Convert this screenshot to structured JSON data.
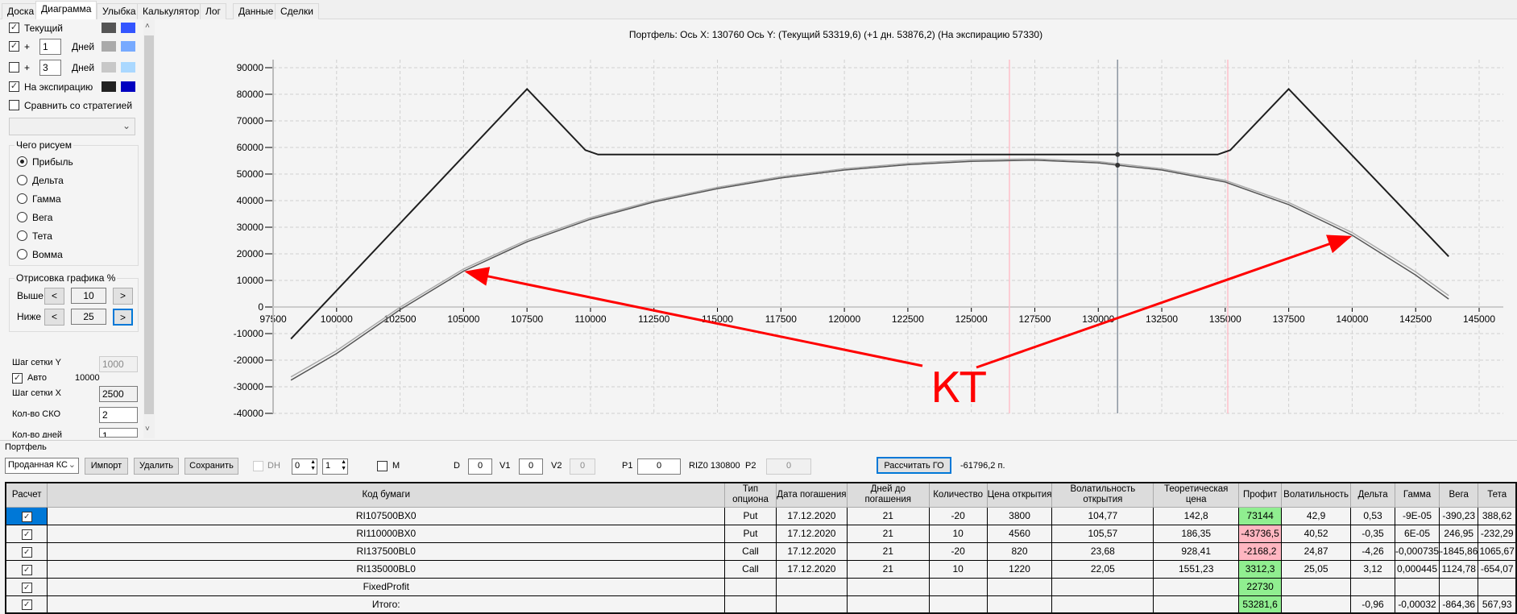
{
  "tabs": [
    "Доска",
    "Диаграмма",
    "Улыбка",
    "Калькулятор",
    "Лог",
    "Данные",
    "Сделки"
  ],
  "active_tab": "Диаграмма",
  "left": {
    "series_rows": [
      {
        "checked": true,
        "label": "Текущий",
        "colors": [
          "#555555",
          "#3355ff"
        ]
      },
      {
        "checked": true,
        "plus": "+",
        "days": "1",
        "days_label": "Дней",
        "colors": [
          "#aaaaaa",
          "#77aaff"
        ]
      },
      {
        "checked": false,
        "plus": "+",
        "days": "3",
        "days_label": "Дней",
        "colors": [
          "#c8c8c8",
          "#aad8ff"
        ]
      },
      {
        "checked": true,
        "label": "На экспирацию",
        "colors": [
          "#222222",
          "#0000c0"
        ]
      }
    ],
    "compare_label": "Сравнить со стратегией",
    "compare_checked": false,
    "strategy_select": "",
    "draw_group": {
      "title": "Чего рисуем",
      "options": [
        "Прибыль",
        "Дельта",
        "Гамма",
        "Вега",
        "Тета",
        "Вомма"
      ],
      "selected": "Прибыль"
    },
    "render_group": {
      "title": "Отрисовка графика %",
      "above_label": "Выше",
      "above_value": "10",
      "below_label": "Ниже",
      "below_value": "25",
      "prev": "<",
      "next": ">"
    },
    "grid_y_label": "Шаг сетки Y",
    "grid_y_value": "1000",
    "auto_label": "Авто",
    "auto_checked": true,
    "auto_value": "10000",
    "grid_x_label": "Шаг сетки X",
    "grid_x_value": "2500",
    "sko_label": "Кол-во СКО",
    "sko_value": "2",
    "days_label": "Кол-во дней",
    "days_value": "1"
  },
  "chart_data": {
    "type": "line",
    "title": "Портфель: Ось X: 130760 Ось Y:  (Текущий 53319,6)  (+1 дн. 53876,2)  (На экспирацию 57330)",
    "xlim": [
      97500,
      145000
    ],
    "ylim": [
      -40000,
      90000
    ],
    "xticks": [
      97500,
      100000,
      102500,
      105000,
      107500,
      110000,
      112500,
      115000,
      117500,
      120000,
      122500,
      125000,
      127500,
      130000,
      132500,
      135000,
      137500,
      140000,
      142500,
      145000
    ],
    "yticks": [
      -40000,
      -30000,
      -20000,
      -10000,
      0,
      10000,
      20000,
      30000,
      40000,
      50000,
      60000,
      70000,
      80000,
      90000
    ],
    "grid": true,
    "series": [
      {
        "color": "#1e1e1e",
        "points": [
          [
            98200,
            -12000
          ],
          [
            107500,
            82000
          ],
          [
            109800,
            59000
          ],
          [
            110300,
            57330
          ],
          [
            134700,
            57330
          ],
          [
            135200,
            59000
          ],
          [
            137500,
            82000
          ],
          [
            143800,
            19000
          ]
        ]
      },
      {
        "color": "#555555",
        "points": [
          [
            98200,
            -27500
          ],
          [
            100000,
            -17500
          ],
          [
            102500,
            -1000
          ],
          [
            105000,
            13500
          ],
          [
            107500,
            24500
          ],
          [
            110000,
            33000
          ],
          [
            112500,
            39500
          ],
          [
            115000,
            44500
          ],
          [
            117500,
            48500
          ],
          [
            120000,
            51500
          ],
          [
            122500,
            53500
          ],
          [
            125000,
            54800
          ],
          [
            127500,
            55200
          ],
          [
            130000,
            54200
          ],
          [
            130760,
            53320
          ],
          [
            132500,
            51500
          ],
          [
            135000,
            47000
          ],
          [
            137500,
            38500
          ],
          [
            140000,
            27000
          ],
          [
            142500,
            12000
          ],
          [
            143800,
            3000
          ]
        ]
      },
      {
        "color": "#aaaaaa",
        "points": [
          [
            98200,
            -26300
          ],
          [
            100000,
            -16400
          ],
          [
            102500,
            -100
          ],
          [
            105000,
            14300
          ],
          [
            107500,
            25200
          ],
          [
            110000,
            33600
          ],
          [
            112500,
            40000
          ],
          [
            115000,
            45000
          ],
          [
            117500,
            49000
          ],
          [
            120000,
            52000
          ],
          [
            122500,
            54000
          ],
          [
            125000,
            55300
          ],
          [
            127500,
            55700
          ],
          [
            130000,
            54700
          ],
          [
            130760,
            53876
          ],
          [
            132500,
            52000
          ],
          [
            135000,
            47600
          ],
          [
            137500,
            39300
          ],
          [
            140000,
            28000
          ],
          [
            142500,
            13200
          ],
          [
            143800,
            4300
          ]
        ]
      }
    ],
    "vlines": [
      {
        "x": 126500,
        "color": "#ffc0cb"
      },
      {
        "x": 135100,
        "color": "#ffc0cb"
      },
      {
        "x": 130760,
        "color": "#8a94a0"
      }
    ],
    "markers": [
      [
        130760,
        57330
      ],
      [
        130760,
        53320
      ]
    ],
    "annotation": {
      "text": "КТ",
      "color": "#ff0000",
      "targets": [
        [
          105000,
          13500
        ],
        [
          140000,
          27000
        ]
      ]
    }
  },
  "portfolio": {
    "title": "Портфель",
    "type_select": "Проданная КС",
    "import": "Импорт",
    "delete": "Удалить",
    "save": "Сохранить",
    "dh_label": "DH",
    "dh_checked": false,
    "spin1": "0",
    "spin2": "1",
    "m_label": "M",
    "m_checked": false,
    "d_label": "D",
    "d_value": "0",
    "v1_label": "V1",
    "v1_value": "0",
    "v2_label": "V2",
    "v2_value": "0",
    "p1_label": "P1",
    "p1_value": "0",
    "riz_label": "RIZ0 130800",
    "p2_label": "P2",
    "p2_value": "0",
    "calc_go": "Рассчитать ГО",
    "go_value": "-61796,2 п.",
    "columns": [
      "Расчет",
      "Код бумаги",
      "Тип опциона",
      "Дата погашения",
      "Дней до погашения",
      "Количество",
      "Цена открытия",
      "Волатильность открытия",
      "Теоретическая цена",
      "Профит",
      "Волатильность",
      "Дельта",
      "Гамма",
      "Вега",
      "Тета"
    ],
    "rows": [
      {
        "checked": true,
        "code": "RI107500BX0",
        "type": "Put",
        "date": "17.12.2020",
        "days": "21",
        "qty": "-20",
        "price": "3800",
        "vol_open": "104,77",
        "theo": "142,8",
        "profit": "73144",
        "profit_sign": "pos",
        "vol": "42,9",
        "delta": "0,53",
        "gamma": "-9E-05",
        "vega": "-390,23",
        "theta": "388,62"
      },
      {
        "checked": true,
        "code": "RI110000BX0",
        "type": "Put",
        "date": "17.12.2020",
        "days": "21",
        "qty": "10",
        "price": "4560",
        "vol_open": "105,57",
        "theo": "186,35",
        "profit": "-43736,5",
        "profit_sign": "neg",
        "vol": "40,52",
        "delta": "-0,35",
        "gamma": "6E-05",
        "vega": "246,95",
        "theta": "-232,29"
      },
      {
        "checked": true,
        "code": "RI137500BL0",
        "type": "Call",
        "date": "17.12.2020",
        "days": "21",
        "qty": "-20",
        "price": "820",
        "vol_open": "23,68",
        "theo": "928,41",
        "profit": "-2168,2",
        "profit_sign": "neg",
        "vol": "24,87",
        "delta": "-4,26",
        "gamma": "-0,000735",
        "vega": "-1845,86",
        "theta": "1065,67"
      },
      {
        "checked": true,
        "code": "RI135000BL0",
        "type": "Call",
        "date": "17.12.2020",
        "days": "21",
        "qty": "10",
        "price": "1220",
        "vol_open": "22,05",
        "theo": "1551,23",
        "profit": "3312,3",
        "profit_sign": "pos",
        "vol": "25,05",
        "delta": "3,12",
        "gamma": "0,000445",
        "vega": "1124,78",
        "theta": "-654,07"
      },
      {
        "checked": true,
        "code": "FixedProfit",
        "type": "",
        "date": "",
        "days": "",
        "qty": "",
        "price": "",
        "vol_open": "",
        "theo": "",
        "profit": "22730",
        "profit_sign": "pos",
        "vol": "",
        "delta": "",
        "gamma": "",
        "vega": "",
        "theta": ""
      },
      {
        "checked": true,
        "code": "Итого:",
        "type": "",
        "date": "",
        "days": "",
        "qty": "",
        "price": "",
        "vol_open": "",
        "theo": "",
        "profit": "53281,6",
        "profit_sign": "pos",
        "vol": "",
        "delta": "-0,96",
        "gamma": "-0,00032",
        "vega": "-864,36",
        "theta": "567,93"
      }
    ]
  }
}
